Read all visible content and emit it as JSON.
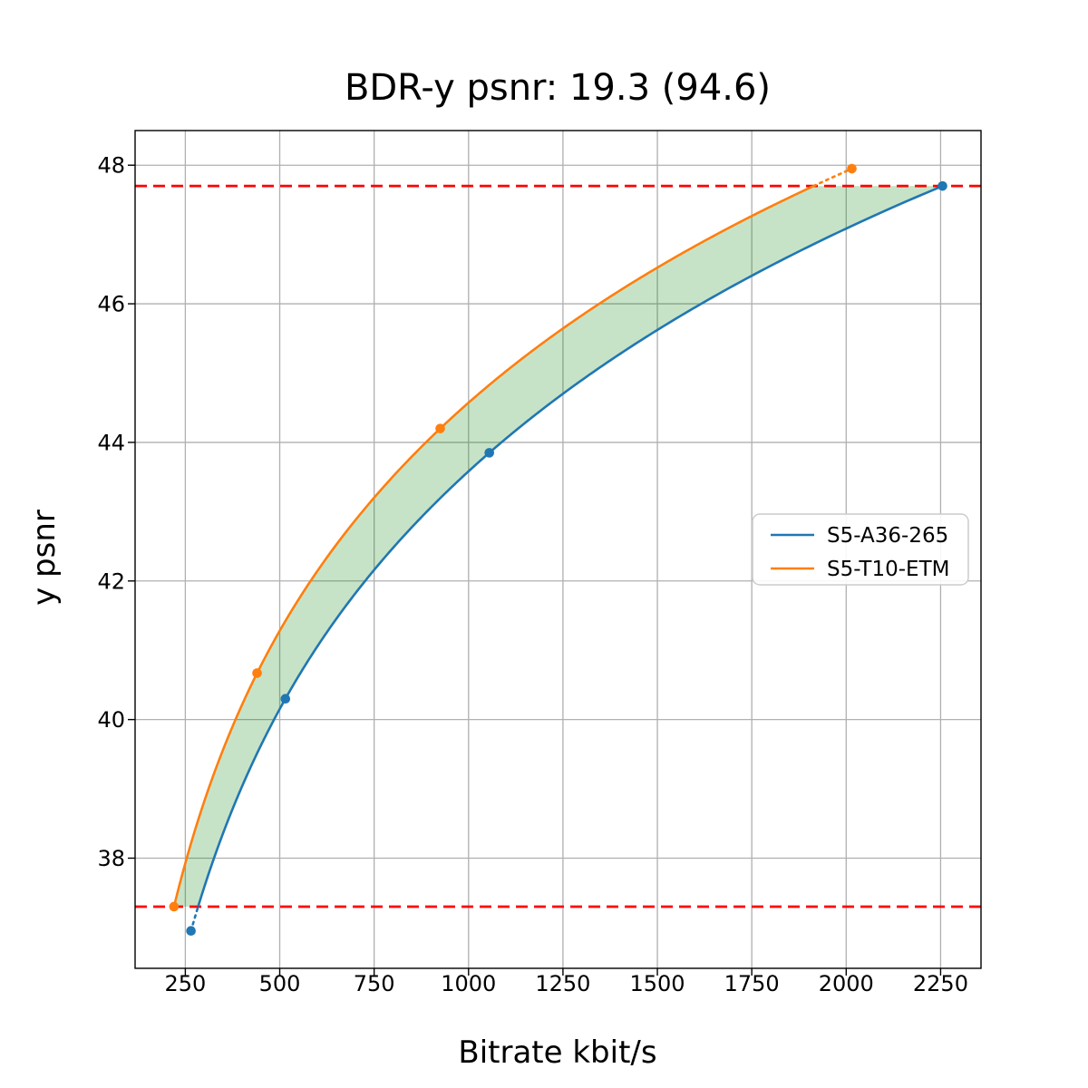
{
  "figure": {
    "title": "BDR-y psnr: 19.3 (94.6)"
  },
  "chart_data": {
    "type": "line",
    "title": "BDR-y psnr: 19.3 (94.6)",
    "xlabel": "Bitrate kbit/s",
    "ylabel": "y psnr",
    "xlim": [
      117,
      2357
    ],
    "ylim": [
      36.41,
      48.5
    ],
    "xticks": [
      250,
      500,
      750,
      1000,
      1250,
      1500,
      1750,
      2000,
      2250
    ],
    "yticks": [
      38,
      40,
      42,
      44,
      46,
      48
    ],
    "grid": true,
    "grid_color": "#b0b0b0",
    "interpolation": "pchip-log-x",
    "series": [
      {
        "name": "S5-A36-265",
        "color": "#1f77b4",
        "x": [
          265,
          515,
          1055,
          2255
        ],
        "y": [
          36.95,
          40.3,
          43.85,
          47.7
        ]
      },
      {
        "name": "S5-T10-ETM",
        "color": "#ff7f0e",
        "x": [
          220,
          440,
          925,
          2015
        ],
        "y": [
          37.3,
          40.67,
          44.2,
          47.95
        ]
      }
    ],
    "overlap_interval": {
      "low": 37.3,
      "high": 47.7,
      "line_color": "#ff0000",
      "line_style": "dashed"
    },
    "fill_between": {
      "color": "#008000",
      "opacity": 0.22
    },
    "legend": {
      "position": "center-right",
      "entries": [
        "S5-A36-265",
        "S5-T10-ETM"
      ]
    }
  }
}
